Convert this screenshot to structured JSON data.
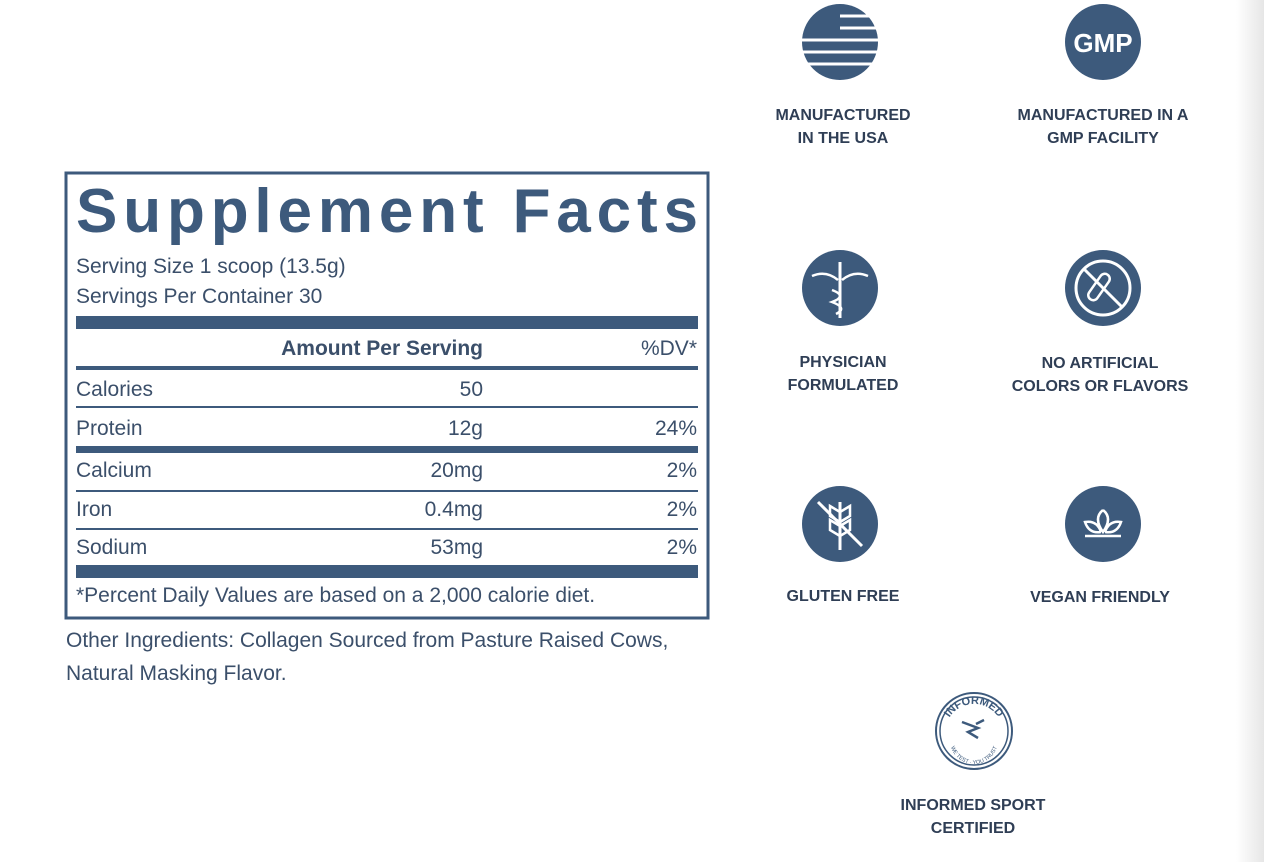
{
  "supplement_facts": {
    "title": "Supplement Facts",
    "serving_size": "Serving Size 1 scoop (13.5g)",
    "servings_per_container": "Servings Per Container 30",
    "header": {
      "amount": "Amount Per Serving",
      "dv": "%DV*"
    },
    "rows": [
      {
        "name": "Calories",
        "amount": "50"
      },
      {
        "name": "Protein",
        "amount": "12g",
        "dv": "24%"
      },
      {
        "name": "Calcium",
        "amount": "20mg",
        "dv": "2%"
      },
      {
        "name": "Iron",
        "amount": "0.4mg",
        "dv": "2%"
      },
      {
        "name": "Sodium",
        "amount": "53mg",
        "dv": "2%"
      }
    ],
    "footnote": "*Percent Daily Values are based on a 2,000 calorie diet."
  },
  "other_ingredients": [
    "Other Ingredients: Collagen Sourced from Pasture Raised Cows,",
    "Natural Masking Flavor."
  ],
  "badges": [
    {
      "label": [
        "MANUFACTURED",
        "IN THE USA"
      ]
    },
    {
      "icon_text": "GMP",
      "label": [
        "MANUFACTURED IN A",
        "GMP FACILITY"
      ]
    },
    {
      "label": [
        "PHYSICIAN",
        "FORMULATED"
      ]
    },
    {
      "label": [
        "NO ARTIFICIAL",
        "COLORS OR FLAVORS"
      ]
    },
    {
      "label": [
        "GLUTEN FREE"
      ]
    },
    {
      "label": [
        "VEGAN FRIENDLY"
      ]
    },
    {
      "icon_text": "INFORMED",
      "icon_subtext": "WE TEST · YOU TRUST",
      "label": [
        "INFORMED SPORT",
        "CERTIFIED"
      ]
    }
  ]
}
